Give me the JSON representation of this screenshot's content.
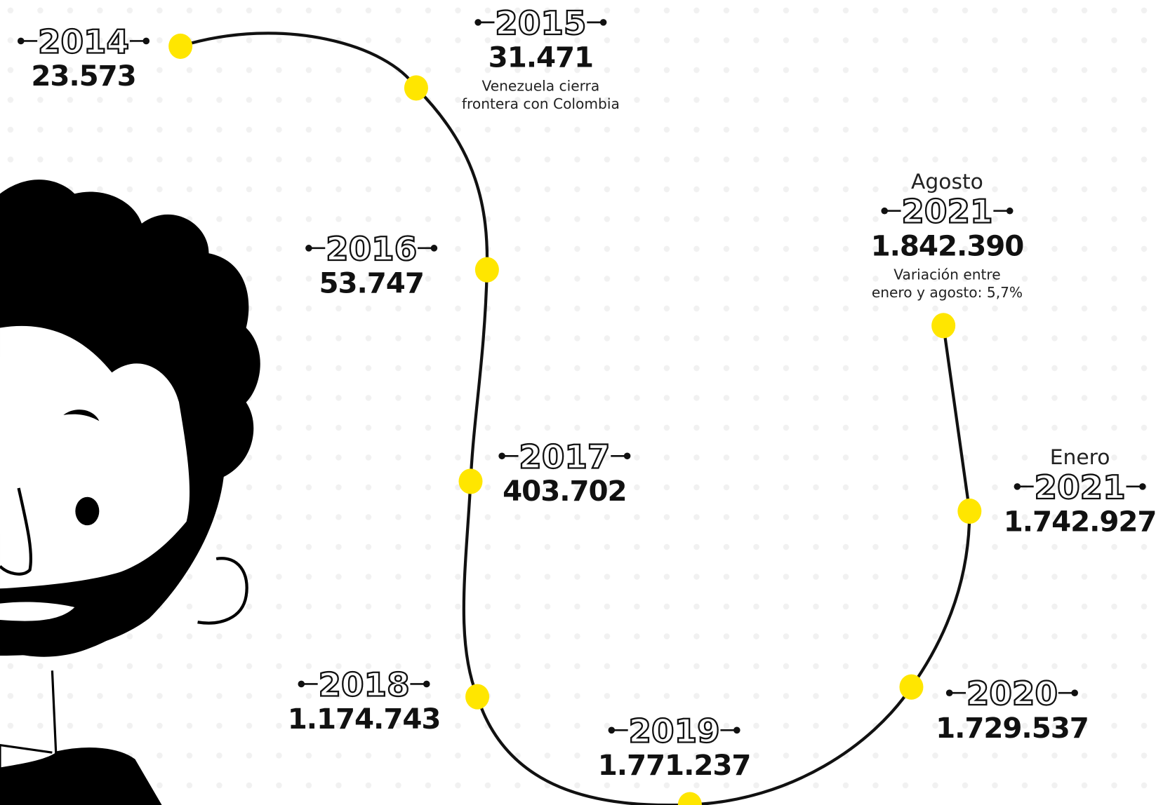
{
  "timeline": [
    {
      "year": "2014",
      "value": "23.573"
    },
    {
      "year": "2015",
      "value": "31.471",
      "note": [
        "Venezuela cierra",
        "frontera con Colombia"
      ]
    },
    {
      "year": "2016",
      "value": "53.747"
    },
    {
      "year": "2017",
      "value": "403.702"
    },
    {
      "year": "2018",
      "value": "1.174.743"
    },
    {
      "year": "2019",
      "value": "1.771.237"
    },
    {
      "year": "2020",
      "value": "1.729.537"
    },
    {
      "period": "Enero",
      "year": "2021",
      "value": "1.742.927"
    },
    {
      "period": "Agosto",
      "year": "2021",
      "value": "1.842.390",
      "note": [
        "Variación entre",
        "enero y agosto: 5,7%"
      ]
    }
  ]
}
